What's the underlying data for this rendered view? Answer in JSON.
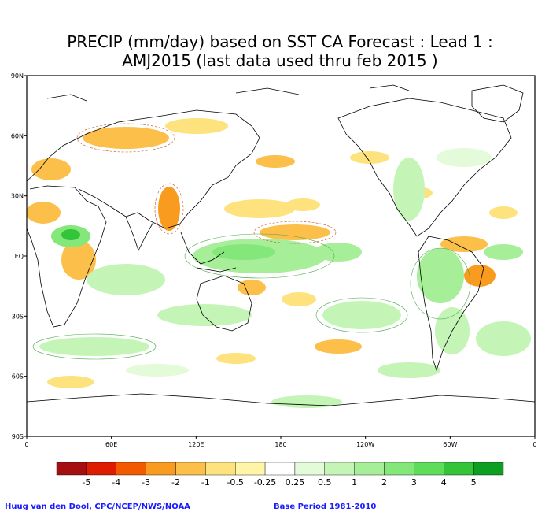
{
  "title_line1": "PRECIP (mm/day) based on SST CA Forecast : Lead 1 :",
  "title_line2": "AMJ2015 (last data used thru feb 2015 )",
  "lat_labels": [
    "90N",
    "60N",
    "30N",
    "EQ",
    "30S",
    "60S",
    "90S"
  ],
  "lon_labels": [
    "0",
    "60E",
    "120E",
    "180",
    "120W",
    "60W",
    "0"
  ],
  "legend": {
    "labels": [
      "-5",
      "-4",
      "-3",
      "-2",
      "-1",
      "-0.5",
      "-0.25",
      "0.25",
      "0.5",
      "1",
      "2",
      "3",
      "4",
      "5"
    ],
    "colors": [
      "#a50f0f",
      "#dd1c00",
      "#f25a00",
      "#f89b1e",
      "#fbbf4a",
      "#fde27e",
      "#fff5a8",
      "#ffffff",
      "#e3fbd9",
      "#c4f5b7",
      "#a6ee98",
      "#84e77a",
      "#5fdc5a",
      "#33c43a",
      "#0c9f22"
    ]
  },
  "credit_left": "Huug van den Dool, CPC/NCEP/NWS/NOAA",
  "credit_right": "Base Period 1981-2010",
  "colors": {
    "dry": "#f8b04a",
    "wet": "#8fe08a",
    "coast": "#000000",
    "frame": "#000000"
  }
}
